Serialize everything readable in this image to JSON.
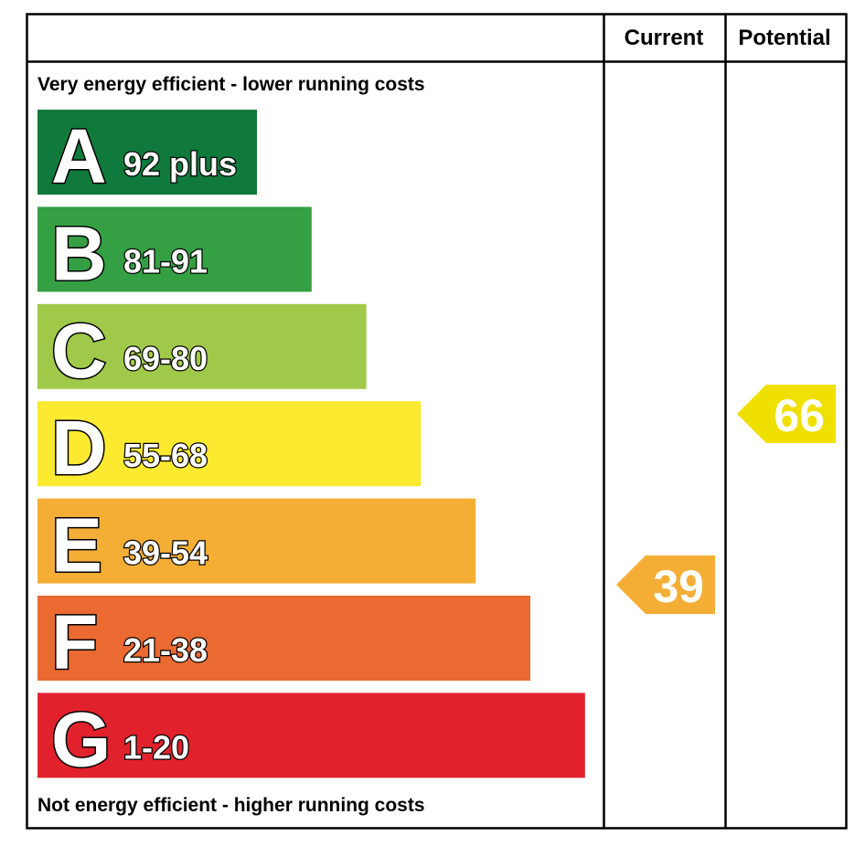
{
  "chart_data": {
    "type": "bar",
    "columns": {
      "current": "Current",
      "potential": "Potential"
    },
    "top_note": "Very energy efficient - lower running costs",
    "bottom_note": "Not energy efficient - higher running costs",
    "bands": [
      {
        "letter": "A",
        "range": "92 plus",
        "color": "#107a3c"
      },
      {
        "letter": "B",
        "range": "81-91",
        "color": "#34a043"
      },
      {
        "letter": "C",
        "range": "69-80",
        "color": "#a0c94a"
      },
      {
        "letter": "D",
        "range": "55-68",
        "color": "#fcea30"
      },
      {
        "letter": "E",
        "range": "39-54",
        "color": "#f5ae35"
      },
      {
        "letter": "F",
        "range": "21-38",
        "color": "#ea6a31"
      },
      {
        "letter": "G",
        "range": "1-20",
        "color": "#e1222d"
      }
    ],
    "current": {
      "value": "39",
      "band": "E",
      "color": "#f5ae35"
    },
    "potential": {
      "value": "66",
      "band": "D",
      "color": "#f0e000"
    }
  }
}
